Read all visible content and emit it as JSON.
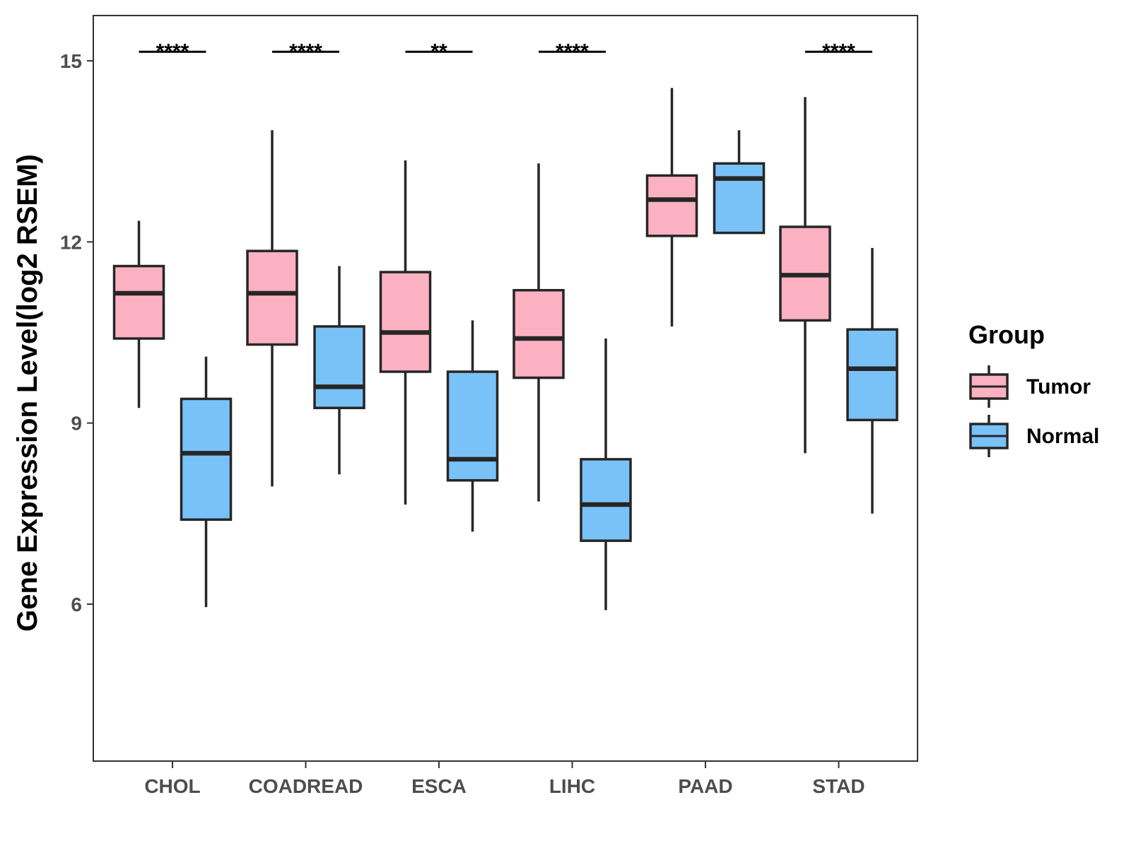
{
  "chart_data": {
    "type": "boxplot",
    "title": "",
    "xlabel": "",
    "ylabel": "Gene Expression Level(log2 RSEM)",
    "ylim": [
      3.4,
      15.75
    ],
    "yticks": [
      6,
      9,
      12,
      15
    ],
    "ytick_labels": [
      "6",
      "9",
      "12",
      "15"
    ],
    "categories": [
      "CHOL",
      "COADREAD",
      "ESCA",
      "LIHC",
      "PAAD",
      "STAD"
    ],
    "legend": {
      "title": "Group",
      "position": "right",
      "entries": [
        {
          "name": "Tumor",
          "color": "#FCB1C3"
        },
        {
          "name": "Normal",
          "color": "#79C2F8"
        }
      ]
    },
    "series": [
      {
        "name": "Tumor",
        "color": "#FCB1C3",
        "boxes": [
          {
            "whisker_low": 9.25,
            "q1": 10.4,
            "median": 11.15,
            "q3": 11.6,
            "whisker_high": 12.35
          },
          {
            "whisker_low": 7.95,
            "q1": 10.3,
            "median": 11.15,
            "q3": 11.85,
            "whisker_high": 13.85
          },
          {
            "whisker_low": 7.65,
            "q1": 9.85,
            "median": 10.5,
            "q3": 11.5,
            "whisker_high": 13.35
          },
          {
            "whisker_low": 7.7,
            "q1": 9.75,
            "median": 10.4,
            "q3": 11.2,
            "whisker_high": 13.3
          },
          {
            "whisker_low": 10.6,
            "q1": 12.1,
            "median": 12.7,
            "q3": 13.1,
            "whisker_high": 14.55
          },
          {
            "whisker_low": 8.5,
            "q1": 10.7,
            "median": 11.45,
            "q3": 12.25,
            "whisker_high": 14.4
          }
        ]
      },
      {
        "name": "Normal",
        "color": "#79C2F8",
        "boxes": [
          {
            "whisker_low": 5.95,
            "q1": 7.4,
            "median": 8.5,
            "q3": 9.4,
            "whisker_high": 10.1
          },
          {
            "whisker_low": 8.15,
            "q1": 9.25,
            "median": 9.6,
            "q3": 10.6,
            "whisker_high": 11.6
          },
          {
            "whisker_low": 7.2,
            "q1": 8.05,
            "median": 8.4,
            "q3": 9.85,
            "whisker_high": 10.7
          },
          {
            "whisker_low": 5.9,
            "q1": 7.05,
            "median": 7.65,
            "q3": 8.4,
            "whisker_high": 10.4
          },
          {
            "whisker_low": 12.15,
            "q1": 12.15,
            "median": 13.05,
            "q3": 13.3,
            "whisker_high": 13.85
          },
          {
            "whisker_low": 7.5,
            "q1": 9.05,
            "median": 9.9,
            "q3": 10.55,
            "whisker_high": 11.9
          }
        ]
      }
    ],
    "significance": [
      {
        "category": "CHOL",
        "label": "****"
      },
      {
        "category": "COADREAD",
        "label": "****"
      },
      {
        "category": "ESCA",
        "label": "**"
      },
      {
        "category": "LIHC",
        "label": "****"
      },
      {
        "category": "PAAD",
        "label": ""
      },
      {
        "category": "STAD",
        "label": "****"
      }
    ],
    "significance_level": 15.15
  }
}
